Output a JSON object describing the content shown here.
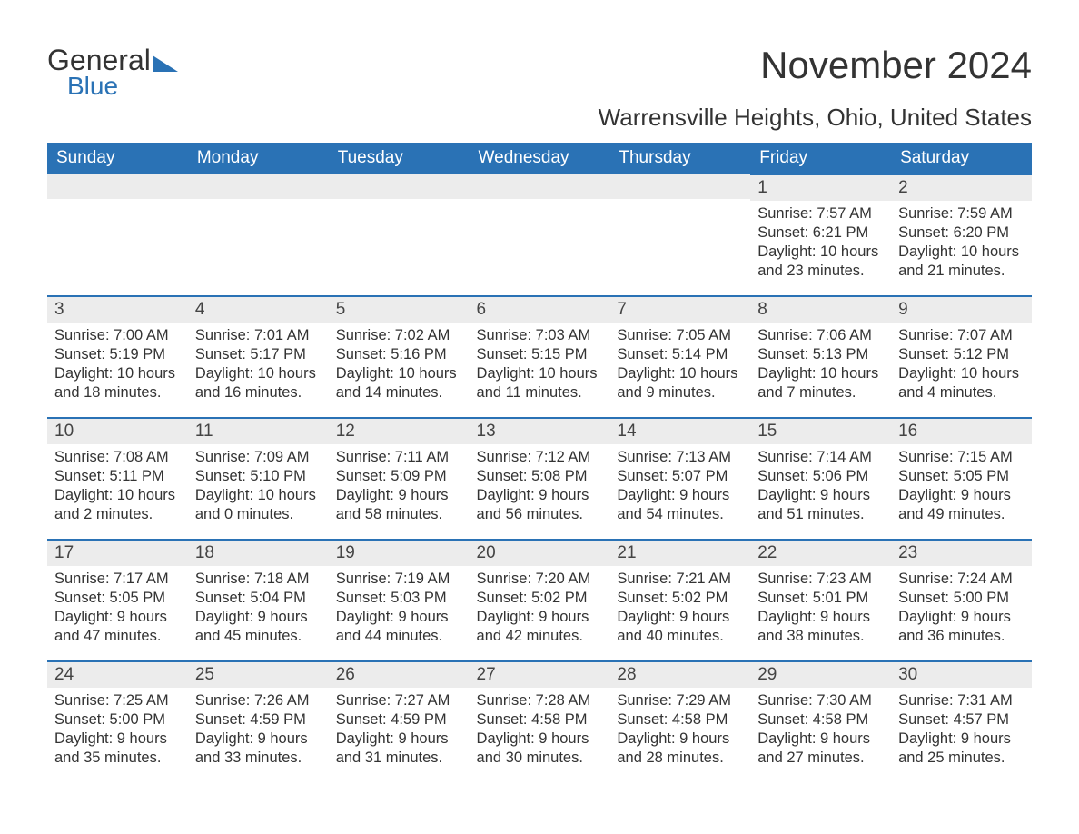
{
  "logo": {
    "part1": "General",
    "part2": "Blue"
  },
  "title": "November 2024",
  "location": "Warrensville Heights, Ohio, United States",
  "colors": {
    "header_bg": "#2a72b5",
    "header_text": "#ffffff",
    "daynum_bg": "#ececec",
    "daynum_border": "#2a72b5",
    "body_text": "#333333",
    "page_bg": "#ffffff"
  },
  "days_of_week": [
    "Sunday",
    "Monday",
    "Tuesday",
    "Wednesday",
    "Thursday",
    "Friday",
    "Saturday"
  ],
  "weeks": [
    [
      null,
      null,
      null,
      null,
      null,
      {
        "n": "1",
        "sunrise": "7:57 AM",
        "sunset": "6:21 PM",
        "dl1": "10 hours",
        "dl2": "and 23 minutes."
      },
      {
        "n": "2",
        "sunrise": "7:59 AM",
        "sunset": "6:20 PM",
        "dl1": "10 hours",
        "dl2": "and 21 minutes."
      }
    ],
    [
      {
        "n": "3",
        "sunrise": "7:00 AM",
        "sunset": "5:19 PM",
        "dl1": "10 hours",
        "dl2": "and 18 minutes."
      },
      {
        "n": "4",
        "sunrise": "7:01 AM",
        "sunset": "5:17 PM",
        "dl1": "10 hours",
        "dl2": "and 16 minutes."
      },
      {
        "n": "5",
        "sunrise": "7:02 AM",
        "sunset": "5:16 PM",
        "dl1": "10 hours",
        "dl2": "and 14 minutes."
      },
      {
        "n": "6",
        "sunrise": "7:03 AM",
        "sunset": "5:15 PM",
        "dl1": "10 hours",
        "dl2": "and 11 minutes."
      },
      {
        "n": "7",
        "sunrise": "7:05 AM",
        "sunset": "5:14 PM",
        "dl1": "10 hours",
        "dl2": "and 9 minutes."
      },
      {
        "n": "8",
        "sunrise": "7:06 AM",
        "sunset": "5:13 PM",
        "dl1": "10 hours",
        "dl2": "and 7 minutes."
      },
      {
        "n": "9",
        "sunrise": "7:07 AM",
        "sunset": "5:12 PM",
        "dl1": "10 hours",
        "dl2": "and 4 minutes."
      }
    ],
    [
      {
        "n": "10",
        "sunrise": "7:08 AM",
        "sunset": "5:11 PM",
        "dl1": "10 hours",
        "dl2": "and 2 minutes."
      },
      {
        "n": "11",
        "sunrise": "7:09 AM",
        "sunset": "5:10 PM",
        "dl1": "10 hours",
        "dl2": "and 0 minutes."
      },
      {
        "n": "12",
        "sunrise": "7:11 AM",
        "sunset": "5:09 PM",
        "dl1": "9 hours",
        "dl2": "and 58 minutes."
      },
      {
        "n": "13",
        "sunrise": "7:12 AM",
        "sunset": "5:08 PM",
        "dl1": "9 hours",
        "dl2": "and 56 minutes."
      },
      {
        "n": "14",
        "sunrise": "7:13 AM",
        "sunset": "5:07 PM",
        "dl1": "9 hours",
        "dl2": "and 54 minutes."
      },
      {
        "n": "15",
        "sunrise": "7:14 AM",
        "sunset": "5:06 PM",
        "dl1": "9 hours",
        "dl2": "and 51 minutes."
      },
      {
        "n": "16",
        "sunrise": "7:15 AM",
        "sunset": "5:05 PM",
        "dl1": "9 hours",
        "dl2": "and 49 minutes."
      }
    ],
    [
      {
        "n": "17",
        "sunrise": "7:17 AM",
        "sunset": "5:05 PM",
        "dl1": "9 hours",
        "dl2": "and 47 minutes."
      },
      {
        "n": "18",
        "sunrise": "7:18 AM",
        "sunset": "5:04 PM",
        "dl1": "9 hours",
        "dl2": "and 45 minutes."
      },
      {
        "n": "19",
        "sunrise": "7:19 AM",
        "sunset": "5:03 PM",
        "dl1": "9 hours",
        "dl2": "and 44 minutes."
      },
      {
        "n": "20",
        "sunrise": "7:20 AM",
        "sunset": "5:02 PM",
        "dl1": "9 hours",
        "dl2": "and 42 minutes."
      },
      {
        "n": "21",
        "sunrise": "7:21 AM",
        "sunset": "5:02 PM",
        "dl1": "9 hours",
        "dl2": "and 40 minutes."
      },
      {
        "n": "22",
        "sunrise": "7:23 AM",
        "sunset": "5:01 PM",
        "dl1": "9 hours",
        "dl2": "and 38 minutes."
      },
      {
        "n": "23",
        "sunrise": "7:24 AM",
        "sunset": "5:00 PM",
        "dl1": "9 hours",
        "dl2": "and 36 minutes."
      }
    ],
    [
      {
        "n": "24",
        "sunrise": "7:25 AM",
        "sunset": "5:00 PM",
        "dl1": "9 hours",
        "dl2": "and 35 minutes."
      },
      {
        "n": "25",
        "sunrise": "7:26 AM",
        "sunset": "4:59 PM",
        "dl1": "9 hours",
        "dl2": "and 33 minutes."
      },
      {
        "n": "26",
        "sunrise": "7:27 AM",
        "sunset": "4:59 PM",
        "dl1": "9 hours",
        "dl2": "and 31 minutes."
      },
      {
        "n": "27",
        "sunrise": "7:28 AM",
        "sunset": "4:58 PM",
        "dl1": "9 hours",
        "dl2": "and 30 minutes."
      },
      {
        "n": "28",
        "sunrise": "7:29 AM",
        "sunset": "4:58 PM",
        "dl1": "9 hours",
        "dl2": "and 28 minutes."
      },
      {
        "n": "29",
        "sunrise": "7:30 AM",
        "sunset": "4:58 PM",
        "dl1": "9 hours",
        "dl2": "and 27 minutes."
      },
      {
        "n": "30",
        "sunrise": "7:31 AM",
        "sunset": "4:57 PM",
        "dl1": "9 hours",
        "dl2": "and 25 minutes."
      }
    ]
  ],
  "labels": {
    "sunrise_prefix": "Sunrise: ",
    "sunset_prefix": "Sunset: ",
    "daylight_prefix": "Daylight: "
  }
}
